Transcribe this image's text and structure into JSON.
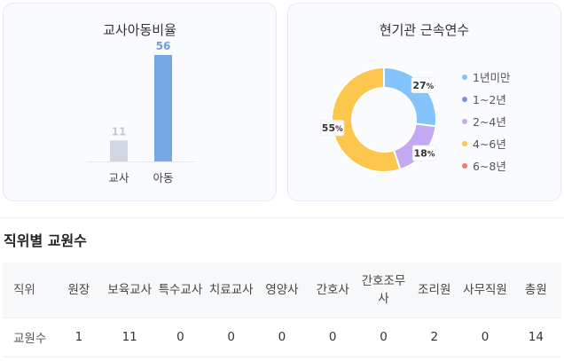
{
  "ratio_card": {
    "title": "교사아동비율"
  },
  "tenure_card": {
    "title": "현기관 근속연수"
  },
  "chart_data": [
    {
      "type": "bar",
      "title": "교사아동비율",
      "categories": [
        "교사",
        "아동"
      ],
      "values": [
        11,
        56
      ],
      "colors": [
        "#d3d6e3",
        "#76a7e6"
      ],
      "label_colors": [
        "#c3c7d6",
        "#6f9fe0"
      ],
      "ylim": [
        0,
        56
      ]
    },
    {
      "type": "pie",
      "title": "현기관 근속연수",
      "categories": [
        "1년미만",
        "1~2년",
        "2~4년",
        "4~6년",
        "6~8년"
      ],
      "values": [
        27,
        0,
        18,
        55,
        0
      ],
      "colors": [
        "#82c4fb",
        "#7b8fe3",
        "#c3a8f2",
        "#fdc64c",
        "#f6776e"
      ],
      "label_colors": [
        "#333333",
        "#333333",
        "#333333",
        "#333333",
        "#f08a7e"
      ],
      "legend_position": "right",
      "donut": true
    }
  ],
  "section": {
    "title": "직위별 교원수"
  },
  "table": {
    "header_label": "직위",
    "row_label": "교원수",
    "columns": [
      {
        "name": "원장",
        "count": "1"
      },
      {
        "name": "보육교사",
        "count": "11"
      },
      {
        "name": "특수교사",
        "count": "0"
      },
      {
        "name": "치료교사",
        "count": "0"
      },
      {
        "name": "영양사",
        "count": "0"
      },
      {
        "name": "간호사",
        "count": "0"
      },
      {
        "name": "간호조무사",
        "count": "0"
      },
      {
        "name": "조리원",
        "count": "2"
      },
      {
        "name": "사무직원",
        "count": "0"
      },
      {
        "name": "총원",
        "count": "14"
      }
    ]
  }
}
